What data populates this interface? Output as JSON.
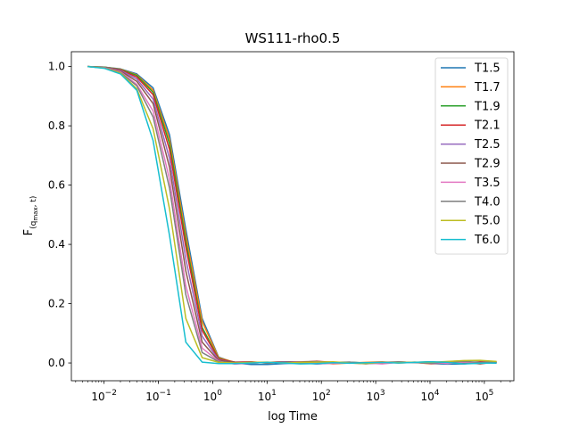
{
  "chart_data": {
    "type": "line",
    "title": "WS111-rho0.5",
    "xlabel": "log Time",
    "ylabel": "F_(q_max, t)",
    "xscale": "log",
    "xlim": [
      0.0025,
      350000
    ],
    "ylim": [
      -0.06,
      1.05
    ],
    "yticks": [
      "0.0",
      "0.2",
      "0.4",
      "0.6",
      "0.8",
      "1.0"
    ],
    "xticks": [
      "10^-2",
      "10^-1",
      "10^0",
      "10^1",
      "10^2",
      "10^3",
      "10^4",
      "10^5"
    ],
    "legend_position": "top-right",
    "x": [
      0.005,
      0.01,
      0.02,
      0.04,
      0.08,
      0.16,
      0.32,
      0.64,
      1.28,
      2.56,
      5.12,
      10.24,
      20.48,
      40.96,
      81.92,
      163.84,
      327.68,
      655.36,
      1310.72,
      2621.44,
      5242.88,
      10485.76,
      20971.52,
      41943.04,
      83886.08,
      167772.16
    ],
    "series": [
      {
        "name": "T1.5",
        "color": "#1f77b4",
        "values": [
          1.0,
          0.998,
          0.992,
          0.975,
          0.928,
          0.77,
          0.45,
          0.15,
          0.02,
          0.0,
          -0.005,
          -0.005,
          -0.002,
          0.0,
          -0.003,
          0.0,
          0.002,
          -0.002,
          0.0,
          0.003,
          0.002,
          -0.002,
          -0.004,
          -0.003,
          0.002,
          -0.001
        ]
      },
      {
        "name": "T1.7",
        "color": "#ff7f0e",
        "values": [
          1.0,
          0.998,
          0.991,
          0.972,
          0.92,
          0.755,
          0.43,
          0.14,
          0.018,
          0.002,
          0.0,
          0.002,
          0.004,
          0.001,
          0.003,
          -0.003,
          0.0,
          0.002,
          0.004,
          0.0,
          0.002,
          -0.003,
          0.001,
          0.003,
          0.001,
          0.002
        ]
      },
      {
        "name": "T1.9",
        "color": "#2ca02c",
        "values": [
          1.0,
          0.998,
          0.99,
          0.97,
          0.913,
          0.74,
          0.41,
          0.12,
          0.015,
          0.002,
          0.003,
          0.0,
          0.003,
          0.002,
          0.001,
          0.002,
          0.003,
          0.0,
          -0.002,
          0.003,
          0.002,
          0.004,
          0.0,
          0.002,
          0.003,
          0.002
        ]
      },
      {
        "name": "T2.1",
        "color": "#d62728",
        "values": [
          1.0,
          0.997,
          0.989,
          0.965,
          0.905,
          0.72,
          0.39,
          0.11,
          0.013,
          0.003,
          0.004,
          0.0,
          0.003,
          0.002,
          0.006,
          0.002,
          0.0,
          -0.002,
          0.001,
          0.003,
          0.002,
          0.0,
          0.003,
          0.0,
          0.004,
          0.003
        ]
      },
      {
        "name": "T2.5",
        "color": "#9467bd",
        "values": [
          1.0,
          0.997,
          0.987,
          0.958,
          0.89,
          0.69,
          0.35,
          0.09,
          0.01,
          0.002,
          0.0,
          0.002,
          0.004,
          0.003,
          -0.003,
          0.0,
          0.002,
          -0.003,
          0.002,
          0.001,
          0.003,
          -0.002,
          0.0,
          0.002,
          -0.001,
          0.003
        ]
      },
      {
        "name": "T2.9",
        "color": "#8c564b",
        "values": [
          1.0,
          0.996,
          0.985,
          0.95,
          0.875,
          0.66,
          0.31,
          0.07,
          0.008,
          0.003,
          0.0,
          0.002,
          0.003,
          0.004,
          0.005,
          0.001,
          0.0,
          -0.001,
          0.0,
          0.003,
          0.002,
          0.003,
          0.0,
          0.002,
          -0.003,
          0.004
        ]
      },
      {
        "name": "T3.5",
        "color": "#e377c2",
        "values": [
          1.0,
          0.996,
          0.982,
          0.94,
          0.85,
          0.62,
          0.26,
          0.05,
          0.006,
          -0.004,
          0.0,
          0.002,
          0.0,
          0.003,
          0.001,
          -0.002,
          0.001,
          0.0,
          -0.003,
          0.002,
          0.001,
          0.002,
          -0.002,
          0.003,
          0.0,
          0.002
        ]
      },
      {
        "name": "T4.0",
        "color": "#7f7f7f",
        "values": [
          1.0,
          0.995,
          0.98,
          0.935,
          0.83,
          0.59,
          0.23,
          0.035,
          0.004,
          0.0,
          0.003,
          0.0,
          0.002,
          0.0,
          0.004,
          0.001,
          0.003,
          0.0,
          0.002,
          0.004,
          0.001,
          0.0,
          0.003,
          0.005,
          0.002,
          0.003
        ]
      },
      {
        "name": "T5.0",
        "color": "#bcbd22",
        "values": [
          1.0,
          0.995,
          0.978,
          0.925,
          0.79,
          0.52,
          0.15,
          0.018,
          0.002,
          0.0,
          0.002,
          0.003,
          0.0,
          0.002,
          0.003,
          0.004,
          0.0,
          -0.002,
          0.002,
          0.001,
          0.003,
          0.002,
          0.005,
          0.008,
          0.009,
          0.005
        ]
      },
      {
        "name": "T6.0",
        "color": "#17becf",
        "values": [
          1.0,
          0.994,
          0.975,
          0.92,
          0.75,
          0.43,
          0.07,
          0.003,
          -0.002,
          -0.002,
          0.0,
          0.002,
          0.0,
          -0.003,
          -0.002,
          0.001,
          -0.001,
          0.001,
          0.002,
          0.0,
          0.002,
          0.004,
          0.002,
          -0.003,
          -0.001,
          0.0
        ]
      }
    ]
  }
}
